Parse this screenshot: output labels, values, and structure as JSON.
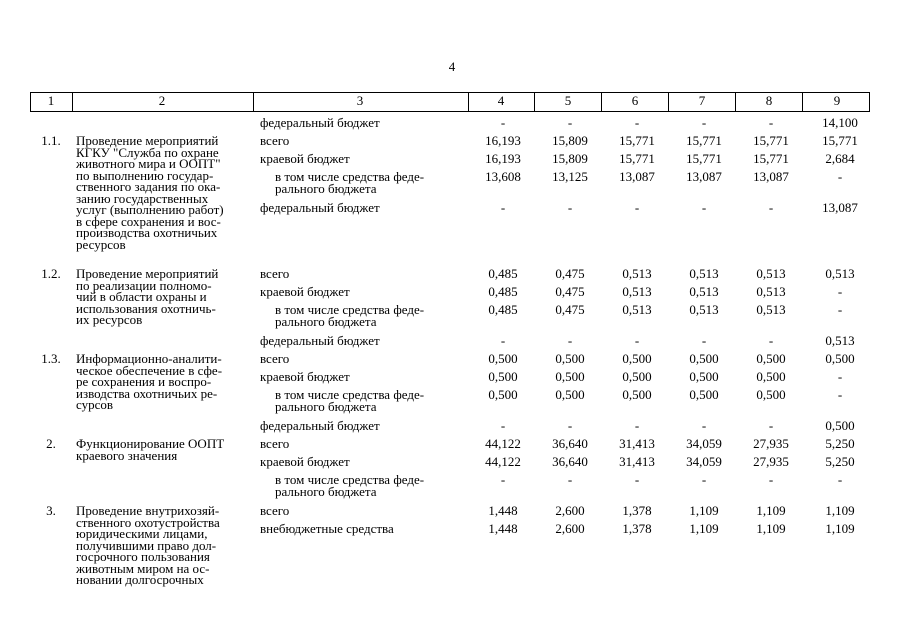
{
  "page_number": "4",
  "table": {
    "header": [
      "1",
      "2",
      "3",
      "4",
      "5",
      "6",
      "7",
      "8",
      "9"
    ],
    "groups": [
      {
        "items": [
          {
            "label": [
              "федеральный бюджет"
            ],
            "values": [
              "-",
              "-",
              "-",
              "-",
              "-",
              "14,100"
            ]
          }
        ]
      },
      {
        "number": "1.1.",
        "name": [
          "Проведение мероприятий",
          "КГКУ \"Служба по охране",
          "животного мира и ООПТ\"",
          "по выполнению государ-",
          "ственного задания по ока-",
          "занию государственных",
          "услуг (выполнению работ)",
          "в сфере сохранения и вос-",
          "производства охотничьих",
          "ресурсов"
        ],
        "items": [
          {
            "label": [
              "всего"
            ],
            "values": [
              "16,193",
              "15,809",
              "15,771",
              "15,771",
              "15,771",
              "15,771"
            ]
          },
          {
            "label": [
              "краевой бюджет"
            ],
            "values": [
              "16,193",
              "15,809",
              "15,771",
              "15,771",
              "15,771",
              "2,684"
            ]
          },
          {
            "label": [
              "в том числе средства феде-",
              "рального бюджета"
            ],
            "indent": true,
            "values": [
              "13,608",
              "13,125",
              "13,087",
              "13,087",
              "13,087",
              "-"
            ]
          },
          {
            "label": [
              "федеральный бюджет"
            ],
            "values": [
              "-",
              "-",
              "-",
              "-",
              "-",
              "13,087"
            ]
          }
        ]
      },
      {
        "number": "1.2.",
        "name": [
          "Проведение мероприятий",
          "по реализации полномо-",
          "чий в области охраны и",
          "использования охотничь-",
          "их ресурсов"
        ],
        "items": [
          {
            "label": [
              "всего"
            ],
            "values": [
              "0,485",
              "0,475",
              "0,513",
              "0,513",
              "0,513",
              "0,513"
            ]
          },
          {
            "label": [
              "краевой бюджет"
            ],
            "values": [
              "0,485",
              "0,475",
              "0,513",
              "0,513",
              "0,513",
              "-"
            ]
          },
          {
            "label": [
              "в том числе средства феде-",
              "рального бюджета"
            ],
            "indent": true,
            "values": [
              "0,485",
              "0,475",
              "0,513",
              "0,513",
              "0,513",
              "-"
            ]
          },
          {
            "label": [
              "федеральный бюджет"
            ],
            "values": [
              "-",
              "-",
              "-",
              "-",
              "-",
              "0,513"
            ]
          }
        ]
      },
      {
        "number": "1.3.",
        "name": [
          "Информационно-аналити-",
          "ческое обеспечение в сфе-",
          "ре сохранения и воспро-",
          "изводства охотничьих ре-",
          "сурсов"
        ],
        "items": [
          {
            "label": [
              "всего"
            ],
            "values": [
              "0,500",
              "0,500",
              "0,500",
              "0,500",
              "0,500",
              "0,500"
            ]
          },
          {
            "label": [
              "краевой бюджет"
            ],
            "values": [
              "0,500",
              "0,500",
              "0,500",
              "0,500",
              "0,500",
              "-"
            ]
          },
          {
            "label": [
              "в том числе средства феде-",
              "рального бюджета"
            ],
            "indent": true,
            "values": [
              "0,500",
              "0,500",
              "0,500",
              "0,500",
              "0,500",
              "-"
            ]
          },
          {
            "label": [
              "федеральный бюджет"
            ],
            "values": [
              "-",
              "-",
              "-",
              "-",
              "-",
              "0,500"
            ]
          }
        ]
      },
      {
        "number": "2.",
        "name": [
          "Функционирование ООПТ",
          "краевого значения"
        ],
        "items": [
          {
            "label": [
              "всего"
            ],
            "values": [
              "44,122",
              "36,640",
              "31,413",
              "34,059",
              "27,935",
              "5,250"
            ]
          },
          {
            "label": [
              "краевой бюджет"
            ],
            "values": [
              "44,122",
              "36,640",
              "31,413",
              "34,059",
              "27,935",
              "5,250"
            ]
          },
          {
            "label": [
              "в том числе средства феде-",
              "рального бюджета"
            ],
            "indent": true,
            "values": [
              "-",
              "-",
              "-",
              "-",
              "-",
              "-"
            ]
          }
        ]
      },
      {
        "number": "3.",
        "name": [
          "Проведение внутрихозяй-",
          "ственного охотустройства",
          "юридическими лицами,",
          "получившими право дол-",
          "госрочного пользования",
          "животным миром на ос-",
          "новании долгосрочных"
        ],
        "items": [
          {
            "label": [
              "всего"
            ],
            "values": [
              "1,448",
              "2,600",
              "1,378",
              "1,109",
              "1,109",
              "1,109"
            ]
          },
          {
            "label": [
              "внебюджетные средства"
            ],
            "values": [
              "1,448",
              "2,600",
              "1,378",
              "1,109",
              "1,109",
              "1,109"
            ]
          }
        ]
      }
    ]
  }
}
